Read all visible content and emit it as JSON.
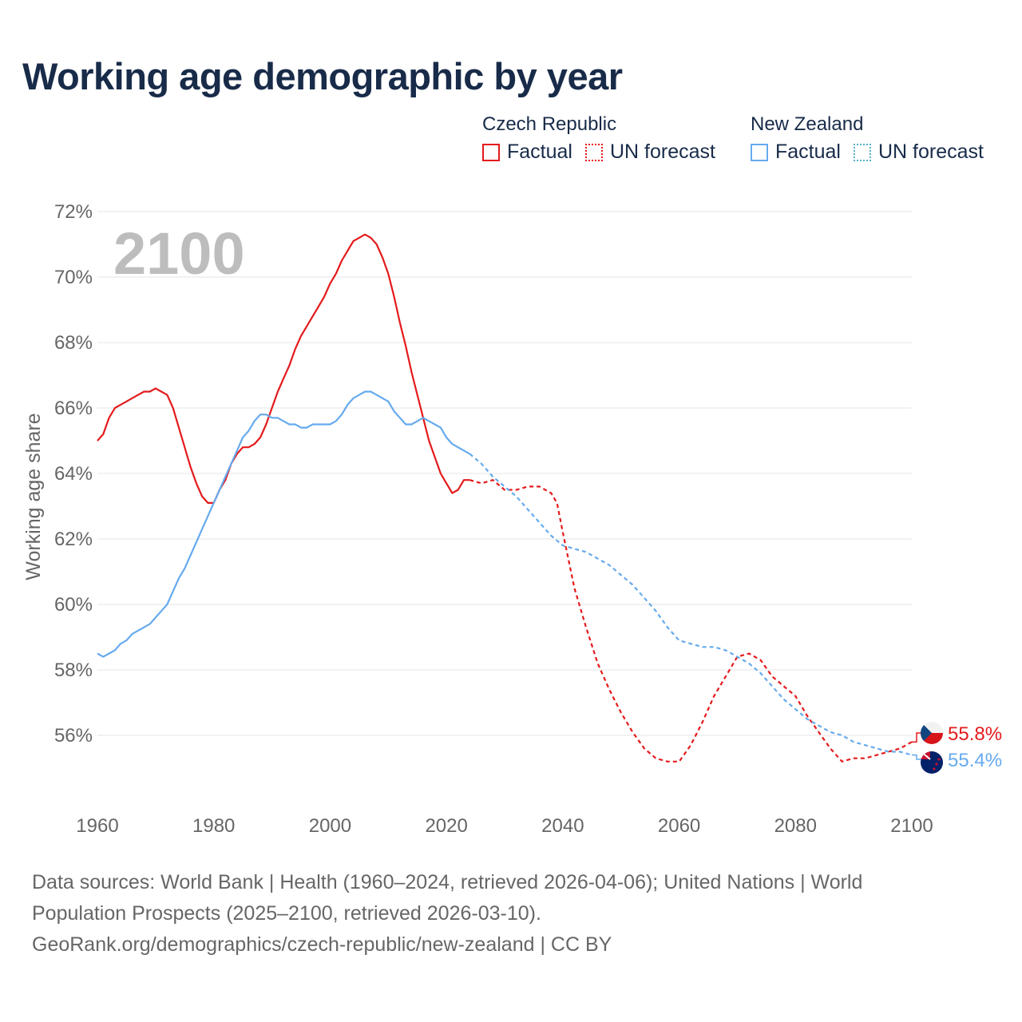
{
  "title": "Working age demographic by year",
  "legend": {
    "groups": [
      {
        "name": "Czech Republic",
        "factual_label": "Factual",
        "forecast_label": "UN forecast"
      },
      {
        "name": "New Zealand",
        "factual_label": "Factual",
        "forecast_label": "UN forecast"
      }
    ]
  },
  "source": {
    "line1": "Data sources: World Bank | Health (1960–2024, retrieved 2026-04-06); United Nations | World",
    "line2": "Population Prospects (2025–2100, retrieved 2026-03-10).",
    "line3": "GeoRank.org/demographics/czech-republic/new-zealand | CC BY"
  },
  "chart_data": {
    "type": "line",
    "title": "Working age demographic by year",
    "ylabel": "Working age share",
    "xlabel": "",
    "year_label": "2100",
    "xlim": [
      1960,
      2100
    ],
    "ylim": [
      54,
      72
    ],
    "x_ticks": [
      1960,
      1980,
      2000,
      2020,
      2040,
      2060,
      2080,
      2100
    ],
    "y_ticks": [
      56,
      58,
      60,
      62,
      64,
      66,
      68,
      70,
      72
    ],
    "y_tick_labels": [
      "56%",
      "58%",
      "60%",
      "62%",
      "64%",
      "66%",
      "68%",
      "70%",
      "72%"
    ],
    "series": [
      {
        "name": "Czech Republic",
        "color": "#e41a1c",
        "end_label": "55.8%",
        "factual": {
          "x": [
            1960,
            1961,
            1962,
            1963,
            1964,
            1965,
            1966,
            1967,
            1968,
            1969,
            1970,
            1971,
            1972,
            1973,
            1974,
            1975,
            1976,
            1977,
            1978,
            1979,
            1980,
            1981,
            1982,
            1983,
            1984,
            1985,
            1986,
            1987,
            1988,
            1989,
            1990,
            1991,
            1992,
            1993,
            1994,
            1995,
            1996,
            1997,
            1998,
            1999,
            2000,
            2001,
            2002,
            2003,
            2004,
            2005,
            2006,
            2007,
            2008,
            2009,
            2010,
            2011,
            2012,
            2013,
            2014,
            2015,
            2016,
            2017,
            2018,
            2019,
            2020,
            2021,
            2022,
            2023,
            2024
          ],
          "y": [
            65.0,
            65.2,
            65.7,
            66.0,
            66.1,
            66.2,
            66.3,
            66.4,
            66.5,
            66.5,
            66.6,
            66.5,
            66.4,
            66.0,
            65.4,
            64.8,
            64.2,
            63.7,
            63.3,
            63.1,
            63.1,
            63.5,
            63.8,
            64.3,
            64.6,
            64.8,
            64.8,
            64.9,
            65.1,
            65.5,
            66.0,
            66.5,
            66.9,
            67.3,
            67.8,
            68.2,
            68.5,
            68.8,
            69.1,
            69.4,
            69.8,
            70.1,
            70.5,
            70.8,
            71.1,
            71.2,
            71.3,
            71.2,
            71.0,
            70.6,
            70.1,
            69.4,
            68.6,
            67.9,
            67.1,
            66.4,
            65.7,
            65.0,
            64.5,
            64.0,
            63.7,
            63.4,
            63.5,
            63.8,
            63.8
          ]
        },
        "forecast": {
          "x": [
            2024,
            2026,
            2028,
            2030,
            2032,
            2034,
            2036,
            2038,
            2039,
            2040,
            2042,
            2044,
            2046,
            2048,
            2050,
            2052,
            2054,
            2056,
            2058,
            2060,
            2062,
            2064,
            2066,
            2068,
            2070,
            2072,
            2074,
            2076,
            2078,
            2080,
            2082,
            2084,
            2086,
            2088,
            2090,
            2092,
            2094,
            2096,
            2098,
            2100
          ],
          "y": [
            63.8,
            63.7,
            63.8,
            63.5,
            63.5,
            63.6,
            63.6,
            63.4,
            63.1,
            62.2,
            60.5,
            59.3,
            58.2,
            57.4,
            56.7,
            56.1,
            55.6,
            55.3,
            55.2,
            55.2,
            55.7,
            56.4,
            57.2,
            57.8,
            58.4,
            58.5,
            58.3,
            57.8,
            57.5,
            57.2,
            56.6,
            56.1,
            55.6,
            55.2,
            55.3,
            55.3,
            55.4,
            55.5,
            55.6,
            55.8
          ]
        }
      },
      {
        "name": "New Zealand",
        "color": "#66aaee",
        "end_label": "55.4%",
        "factual": {
          "x": [
            1960,
            1961,
            1962,
            1963,
            1964,
            1965,
            1966,
            1967,
            1968,
            1969,
            1970,
            1971,
            1972,
            1973,
            1974,
            1975,
            1976,
            1977,
            1978,
            1979,
            1980,
            1981,
            1982,
            1983,
            1984,
            1985,
            1986,
            1987,
            1988,
            1989,
            1990,
            1991,
            1992,
            1993,
            1994,
            1995,
            1996,
            1997,
            1998,
            1999,
            2000,
            2001,
            2002,
            2003,
            2004,
            2005,
            2006,
            2007,
            2008,
            2009,
            2010,
            2011,
            2012,
            2013,
            2014,
            2015,
            2016,
            2017,
            2018,
            2019,
            2020,
            2021,
            2022,
            2023,
            2024
          ],
          "y": [
            58.5,
            58.4,
            58.5,
            58.6,
            58.8,
            58.9,
            59.1,
            59.2,
            59.3,
            59.4,
            59.6,
            59.8,
            60.0,
            60.4,
            60.8,
            61.1,
            61.5,
            61.9,
            62.3,
            62.7,
            63.1,
            63.5,
            63.9,
            64.3,
            64.7,
            65.1,
            65.3,
            65.6,
            65.8,
            65.8,
            65.7,
            65.7,
            65.6,
            65.5,
            65.5,
            65.4,
            65.4,
            65.5,
            65.5,
            65.5,
            65.5,
            65.6,
            65.8,
            66.1,
            66.3,
            66.4,
            66.5,
            66.5,
            66.4,
            66.3,
            66.2,
            65.9,
            65.7,
            65.5,
            65.5,
            65.6,
            65.7,
            65.6,
            65.5,
            65.4,
            65.1,
            64.9,
            64.8,
            64.7,
            64.6
          ]
        },
        "forecast": {
          "x": [
            2024,
            2026,
            2028,
            2030,
            2032,
            2034,
            2036,
            2038,
            2040,
            2042,
            2044,
            2046,
            2048,
            2050,
            2052,
            2054,
            2056,
            2058,
            2060,
            2062,
            2064,
            2066,
            2068,
            2070,
            2072,
            2074,
            2076,
            2078,
            2080,
            2082,
            2084,
            2086,
            2088,
            2090,
            2092,
            2094,
            2096,
            2098,
            2100
          ],
          "y": [
            64.6,
            64.3,
            63.9,
            63.6,
            63.3,
            62.9,
            62.5,
            62.1,
            61.8,
            61.7,
            61.6,
            61.4,
            61.2,
            60.9,
            60.6,
            60.2,
            59.8,
            59.3,
            58.9,
            58.8,
            58.7,
            58.7,
            58.6,
            58.4,
            58.2,
            57.9,
            57.5,
            57.1,
            56.8,
            56.5,
            56.3,
            56.1,
            56.0,
            55.8,
            55.7,
            55.6,
            55.5,
            55.5,
            55.4
          ]
        }
      }
    ]
  }
}
